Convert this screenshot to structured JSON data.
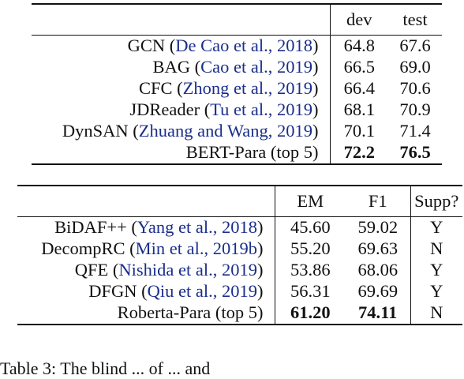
{
  "table1": {
    "headers": [
      "dev",
      "test"
    ],
    "rows": [
      {
        "model": "GCN",
        "cite": "De Cao et al., 2018",
        "dev": "64.8",
        "test": "67.6",
        "bold": false
      },
      {
        "model": "BAG",
        "cite": "Cao et al., 2019",
        "dev": "66.5",
        "test": "69.0",
        "bold": false
      },
      {
        "model": "CFC",
        "cite": "Zhong et al., 2019",
        "dev": "66.4",
        "test": "70.6",
        "bold": false
      },
      {
        "model": "JDReader",
        "cite": "Tu et al., 2019",
        "dev": "68.1",
        "test": "70.9",
        "bold": false
      },
      {
        "model": "DynSAN",
        "cite": "Zhuang and Wang, 2019",
        "dev": "70.1",
        "test": "71.4",
        "bold": false
      },
      {
        "model": "BERT-Para (top 5)",
        "cite": "",
        "dev": "72.2",
        "test": "76.5",
        "bold": true
      }
    ]
  },
  "table2": {
    "headers": [
      "EM",
      "F1",
      "Supp?"
    ],
    "rows": [
      {
        "model": "BiDAF++",
        "cite": "Yang et al., 2018",
        "em": "45.60",
        "f1": "59.02",
        "supp": "Y",
        "bold": false
      },
      {
        "model": "DecompRC",
        "cite": "Min et al., 2019b",
        "em": "55.20",
        "f1": "69.63",
        "supp": "N",
        "bold": false
      },
      {
        "model": "QFE",
        "cite": "Nishida et al., 2019",
        "em": "53.86",
        "f1": "68.06",
        "supp": "Y",
        "bold": false
      },
      {
        "model": "DFGN",
        "cite": "Qiu et al., 2019",
        "em": "56.31",
        "f1": "69.69",
        "supp": "Y",
        "bold": false
      },
      {
        "model": "Roberta-Para (top 5)",
        "cite": "",
        "em": "61.20",
        "f1": "74.11",
        "supp": "N",
        "bold": true
      }
    ]
  },
  "caption": "Table 3: The blind ... of ... and"
}
